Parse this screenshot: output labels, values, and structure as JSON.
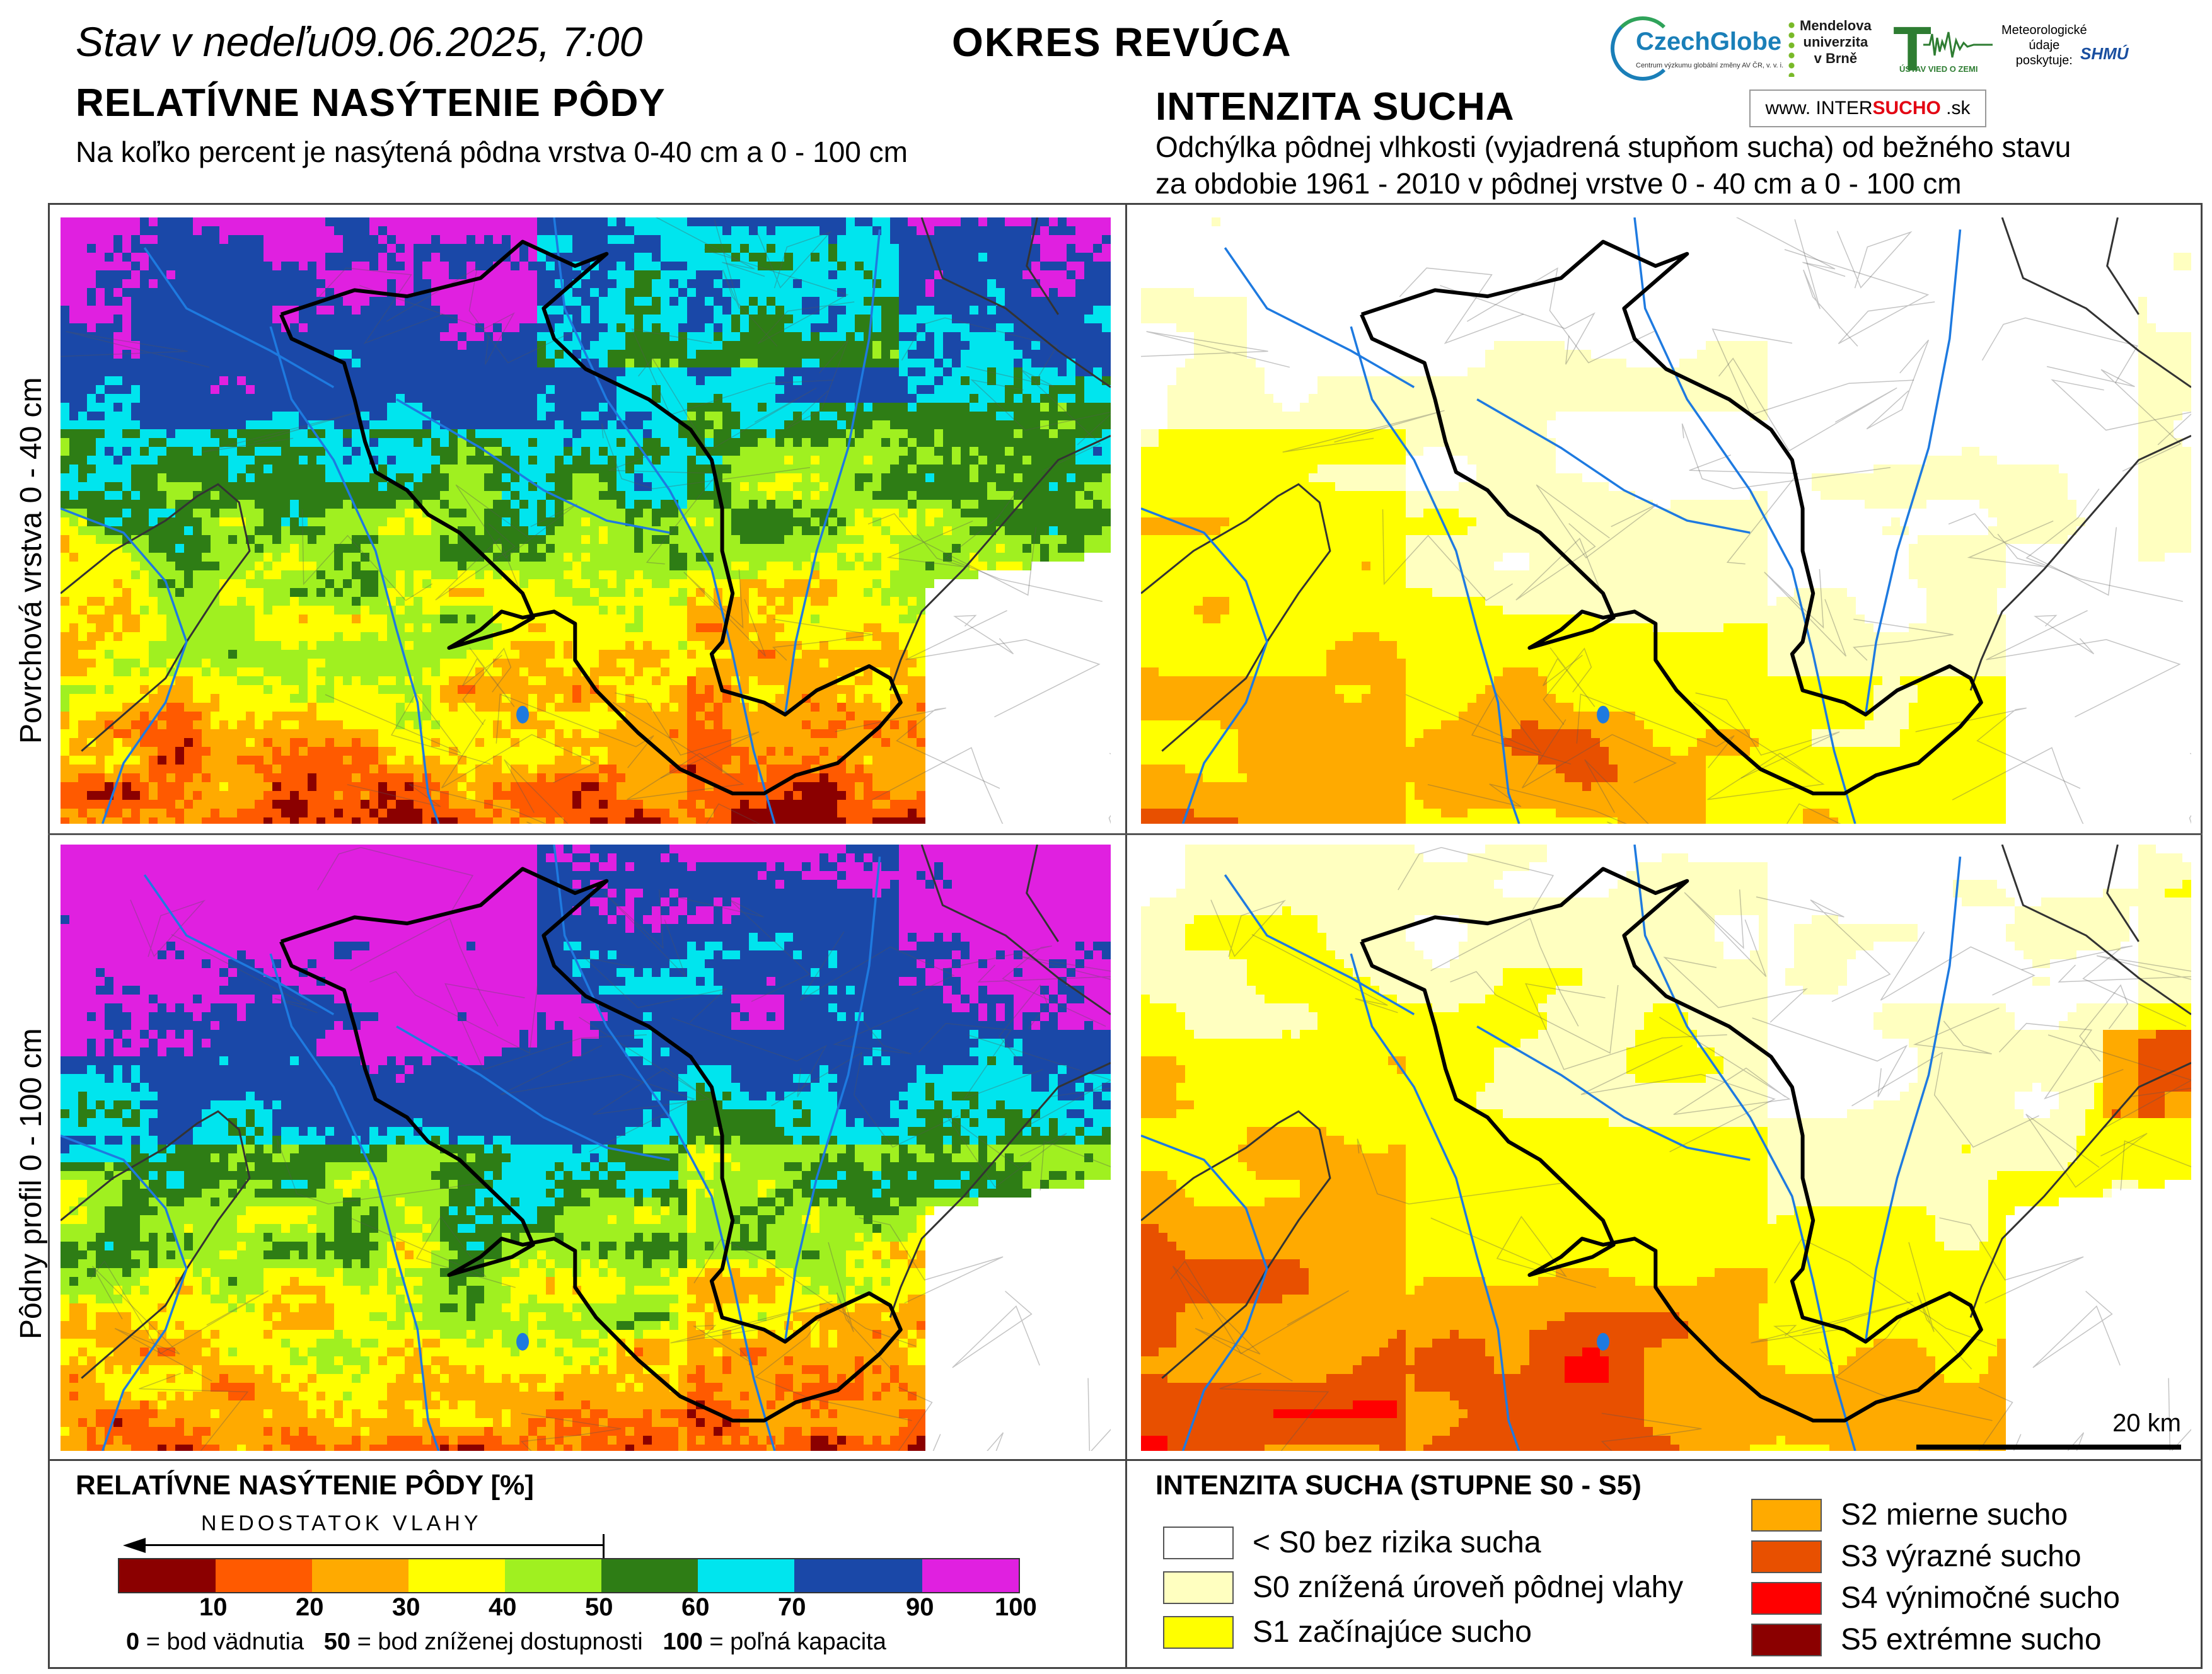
{
  "header": {
    "status_prefix": "Stav v nedeľu",
    "status_datetime": "09.06.2025, 7:00",
    "district": "OKRES  REVÚCA"
  },
  "left_section": {
    "title": "RELATÍVNE NASÝTENIE PÔDY",
    "subtitle": "Na koľko percent je nasýtená pôdna vrstva 0-40 cm a 0 - 100 cm"
  },
  "right_section": {
    "title": "INTENZITA SUCHA",
    "subtitle_line1": "Odchýlka pôdnej vlhkosti (vyjadrená stupňom sucha) od bežného stavu",
    "subtitle_line2": "za obdobie 1961 - 2010 v pôdnej vrstve 0 - 40 cm a 0 - 100 cm"
  },
  "logos": {
    "czechglobe": "CzechGlobe",
    "czechglobe_small": "Centrum výzkumu globální změny AV ČR, v. v. i.",
    "mendel_l1": "Mendelova",
    "mendel_l2": "univerzita",
    "mendel_l3": "v Brně",
    "uvz": "ÚSTAV VIED O ZEMI",
    "met_l1": "Meteorologické",
    "met_l2": "údaje",
    "met_l3": "poskytuje:",
    "shmu": "SHMÚ",
    "intersucho_prefix": "www. ",
    "intersucho_a": "INTER",
    "intersucho_b": "SUCHO",
    "intersucho_suffix": " .sk"
  },
  "row_labels": {
    "top": "Povrchová vrstva 0 - 40 cm",
    "bottom": "Pôdny profil 0 - 100 cm"
  },
  "scale_bar": {
    "label": "20 km"
  },
  "saturation_legend": {
    "title": "RELATÍVNE NASÝTENIE PÔDY [%]",
    "arrow_text": "NEDOSTATOK VLAHY",
    "bins": [
      {
        "upper": "10",
        "color": "#8b0000"
      },
      {
        "upper": "20",
        "color": "#ff5a00"
      },
      {
        "upper": "30",
        "color": "#ffaa00"
      },
      {
        "upper": "40",
        "color": "#ffff00"
      },
      {
        "upper": "50",
        "color": "#a0f020"
      },
      {
        "upper": "60",
        "color": "#2e7d15"
      },
      {
        "upper": "70",
        "color": "#00e5ee"
      },
      {
        "upper": "90",
        "color": "#1a48a8"
      },
      {
        "upper": "100",
        "color": "#e020e0"
      }
    ],
    "note_v0": "0",
    "note_t0": " = bod vädnutia   ",
    "note_v50": "50",
    "note_t50": " = bod zníženej dostupnosti   ",
    "note_v100": "100",
    "note_t100": " = poľná kapacita"
  },
  "drought_legend": {
    "title": "INTENZITA SUCHA (STUPNE S0 - S5)",
    "items": [
      {
        "label": "< S0 bez rizika sucha",
        "color": "#ffffff"
      },
      {
        "label": "S0 znížená úroveň pôdnej vlahy",
        "color": "#ffffc0"
      },
      {
        "label": "S1 začínajúce sucho",
        "color": "#ffff00"
      },
      {
        "label": "S2 mierne sucho",
        "color": "#ffaa00"
      },
      {
        "label": "S3 výrazné sucho",
        "color": "#e85000"
      },
      {
        "label": "S4 výnimočné sucho",
        "color": "#ff0000"
      },
      {
        "label": "S5 extrémne sucho",
        "color": "#8b0000"
      }
    ]
  }
}
